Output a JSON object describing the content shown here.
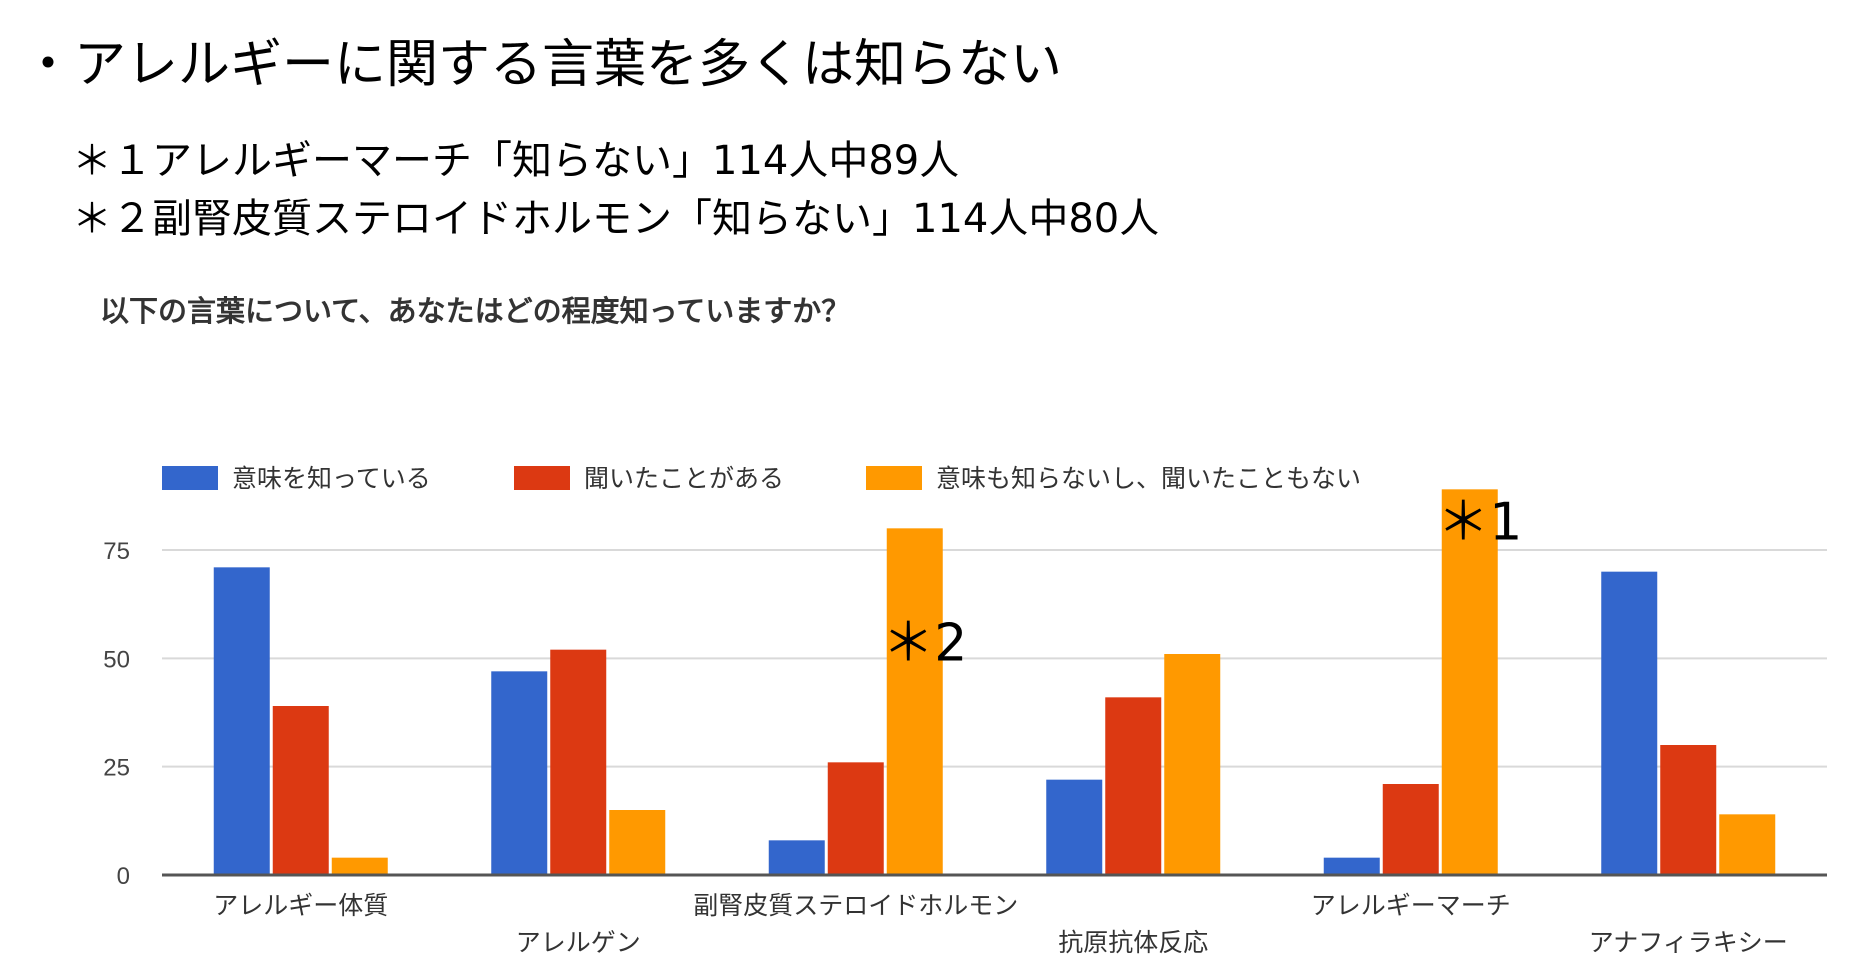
{
  "slide": {
    "title": "・アレルギーに関する言葉を多くは知らない",
    "notes": [
      "＊１アレルギーマーチ「知らない」114人中89人",
      "＊２副腎皮質ステロイドホルモン「知らない」114人中80人"
    ]
  },
  "chart_data": {
    "type": "bar",
    "title": "以下の言葉について、あなたはどの程度知っていますか？",
    "xlabel": "",
    "ylabel": "",
    "categories": [
      "アレルギー体質",
      "アレルゲン",
      "副腎皮質ステロイドホルモン",
      "抗原抗体反応",
      "アレルギーマーチ",
      "アナフィラキシー"
    ],
    "series": [
      {
        "name": "意味を知っている",
        "color": "#3366cc",
        "values": [
          71,
          47,
          8,
          22,
          4,
          70
        ]
      },
      {
        "name": "聞いたことがある",
        "color": "#dc3912",
        "values": [
          39,
          52,
          26,
          41,
          21,
          30
        ]
      },
      {
        "name": "意味も知らないし、聞いたこともない",
        "color": "#ff9900",
        "values": [
          4,
          15,
          80,
          51,
          89,
          14
        ]
      }
    ],
    "ylim": [
      0,
      89
    ],
    "yticks": [
      0,
      25,
      50,
      75
    ],
    "grid": true,
    "legend": "top-left",
    "annotations": [
      {
        "text": "＊2",
        "category": "副腎皮質ステロイドホルモン",
        "series": "意味も知らないし、聞いたこともない"
      },
      {
        "text": "＊1",
        "category": "アレルギーマーチ",
        "series": "意味も知らないし、聞いたこともない"
      }
    ]
  }
}
